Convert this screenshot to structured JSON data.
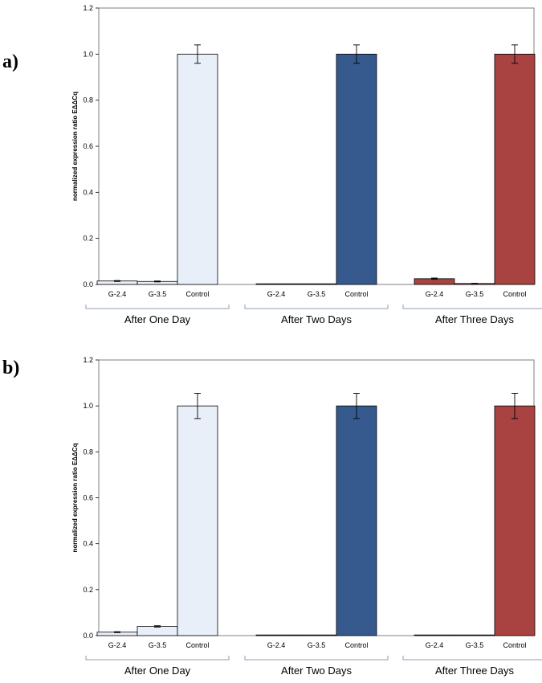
{
  "chart_data": [
    {
      "panel": "a)",
      "type": "bar",
      "ylabel": "normalized expression ratio EΔΔCq",
      "ylim": [
        0,
        1.2
      ],
      "yticks": [
        "0.0",
        "0.2",
        "0.4",
        "0.6",
        "0.8",
        "1.0",
        "1.2"
      ],
      "groups": [
        {
          "label": "After One Day",
          "color": "#e8eff9",
          "categories": [
            "G-2.4",
            "G-3.5",
            "Control"
          ],
          "values": [
            0.015,
            0.013,
            1.0
          ],
          "errors": [
            0.002,
            0.002,
            0.04
          ]
        },
        {
          "label": "After Two Days",
          "color": "#365a8e",
          "categories": [
            "G-2.4",
            "G-3.5",
            "Control"
          ],
          "values": [
            0.001,
            0.001,
            1.0
          ],
          "errors": [
            0.0,
            0.0,
            0.04
          ]
        },
        {
          "label": "After Three Days",
          "color": "#a84341",
          "categories": [
            "G-2.4",
            "G-3.5",
            "Control"
          ],
          "values": [
            0.025,
            0.004,
            1.0
          ],
          "errors": [
            0.003,
            0.001,
            0.04
          ]
        }
      ]
    },
    {
      "panel": "b)",
      "type": "bar",
      "ylabel": "normalized expression ratio EΔΔCq",
      "ylim": [
        0,
        1.2
      ],
      "yticks": [
        "0.0",
        "0.2",
        "0.4",
        "0.6",
        "0.8",
        "1.0",
        "1.2"
      ],
      "groups": [
        {
          "label": "After One Day",
          "color": "#e8eff9",
          "categories": [
            "G-2.4",
            "G-3.5",
            "Control"
          ],
          "values": [
            0.015,
            0.04,
            1.0
          ],
          "errors": [
            0.002,
            0.003,
            0.055
          ]
        },
        {
          "label": "After Two Days",
          "color": "#365a8e",
          "categories": [
            "G-2.4",
            "G-3.5",
            "Control"
          ],
          "values": [
            0.001,
            0.002,
            1.0
          ],
          "errors": [
            0.0,
            0.0,
            0.055
          ]
        },
        {
          "label": "After Three Days",
          "color": "#a84341",
          "categories": [
            "G-2.4",
            "G-3.5",
            "Control"
          ],
          "values": [
            0.001,
            0.001,
            1.0
          ],
          "errors": [
            0.0,
            0.0,
            0.055
          ]
        }
      ]
    }
  ]
}
